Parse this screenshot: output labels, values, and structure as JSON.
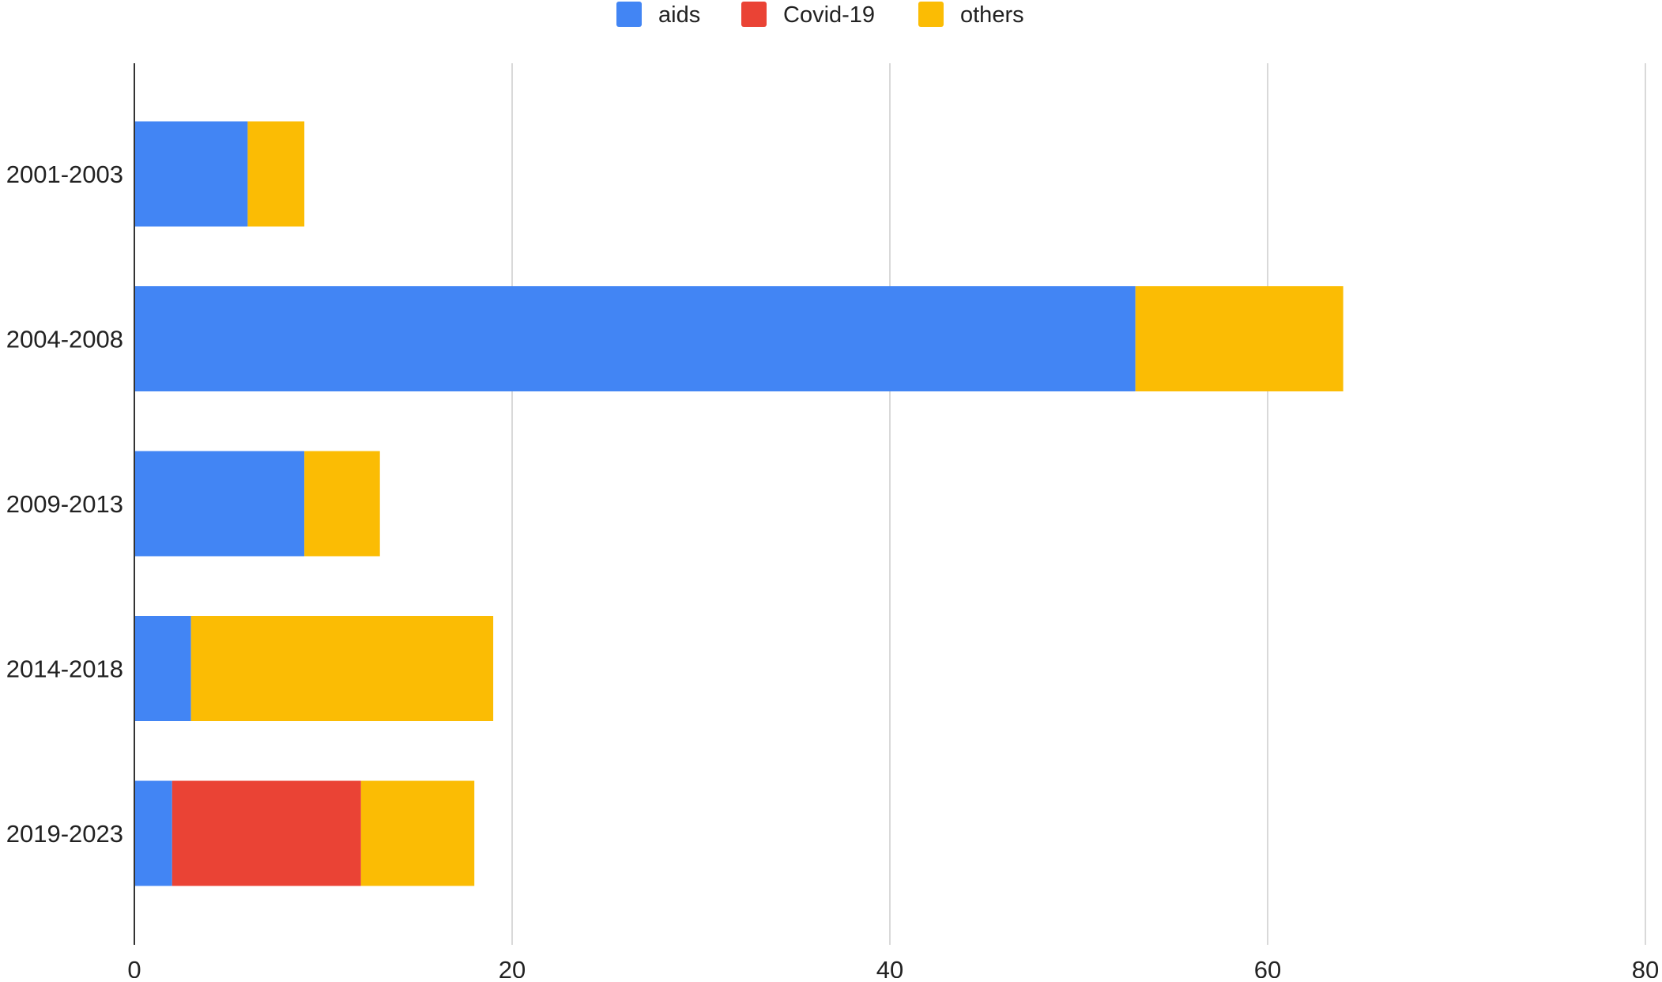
{
  "colors": {
    "aids": "#4285F4",
    "covid": "#EA4335",
    "others": "#FBBC04",
    "gridline": "#d9d9d9",
    "axis": "#333333"
  },
  "chart_data": {
    "type": "bar",
    "orientation": "horizontal",
    "stacked": true,
    "categories": [
      "2001-2003",
      "2004-2008",
      "2009-2013",
      "2014-2018",
      "2019-2023"
    ],
    "series": [
      {
        "name": "aids",
        "color": "#4285F4",
        "values": [
          6,
          53,
          9,
          3,
          2
        ]
      },
      {
        "name": "Covid-19",
        "color": "#EA4335",
        "values": [
          0,
          0,
          0,
          0,
          10
        ]
      },
      {
        "name": "others",
        "color": "#FBBC04",
        "values": [
          3,
          11,
          4,
          16,
          6
        ]
      }
    ],
    "xlim": [
      0,
      80
    ],
    "x_ticks": [
      "0",
      "20",
      "40",
      "60",
      "80"
    ],
    "grid": "vertical",
    "legend_position": "top",
    "title": "",
    "xlabel": "",
    "ylabel": ""
  }
}
